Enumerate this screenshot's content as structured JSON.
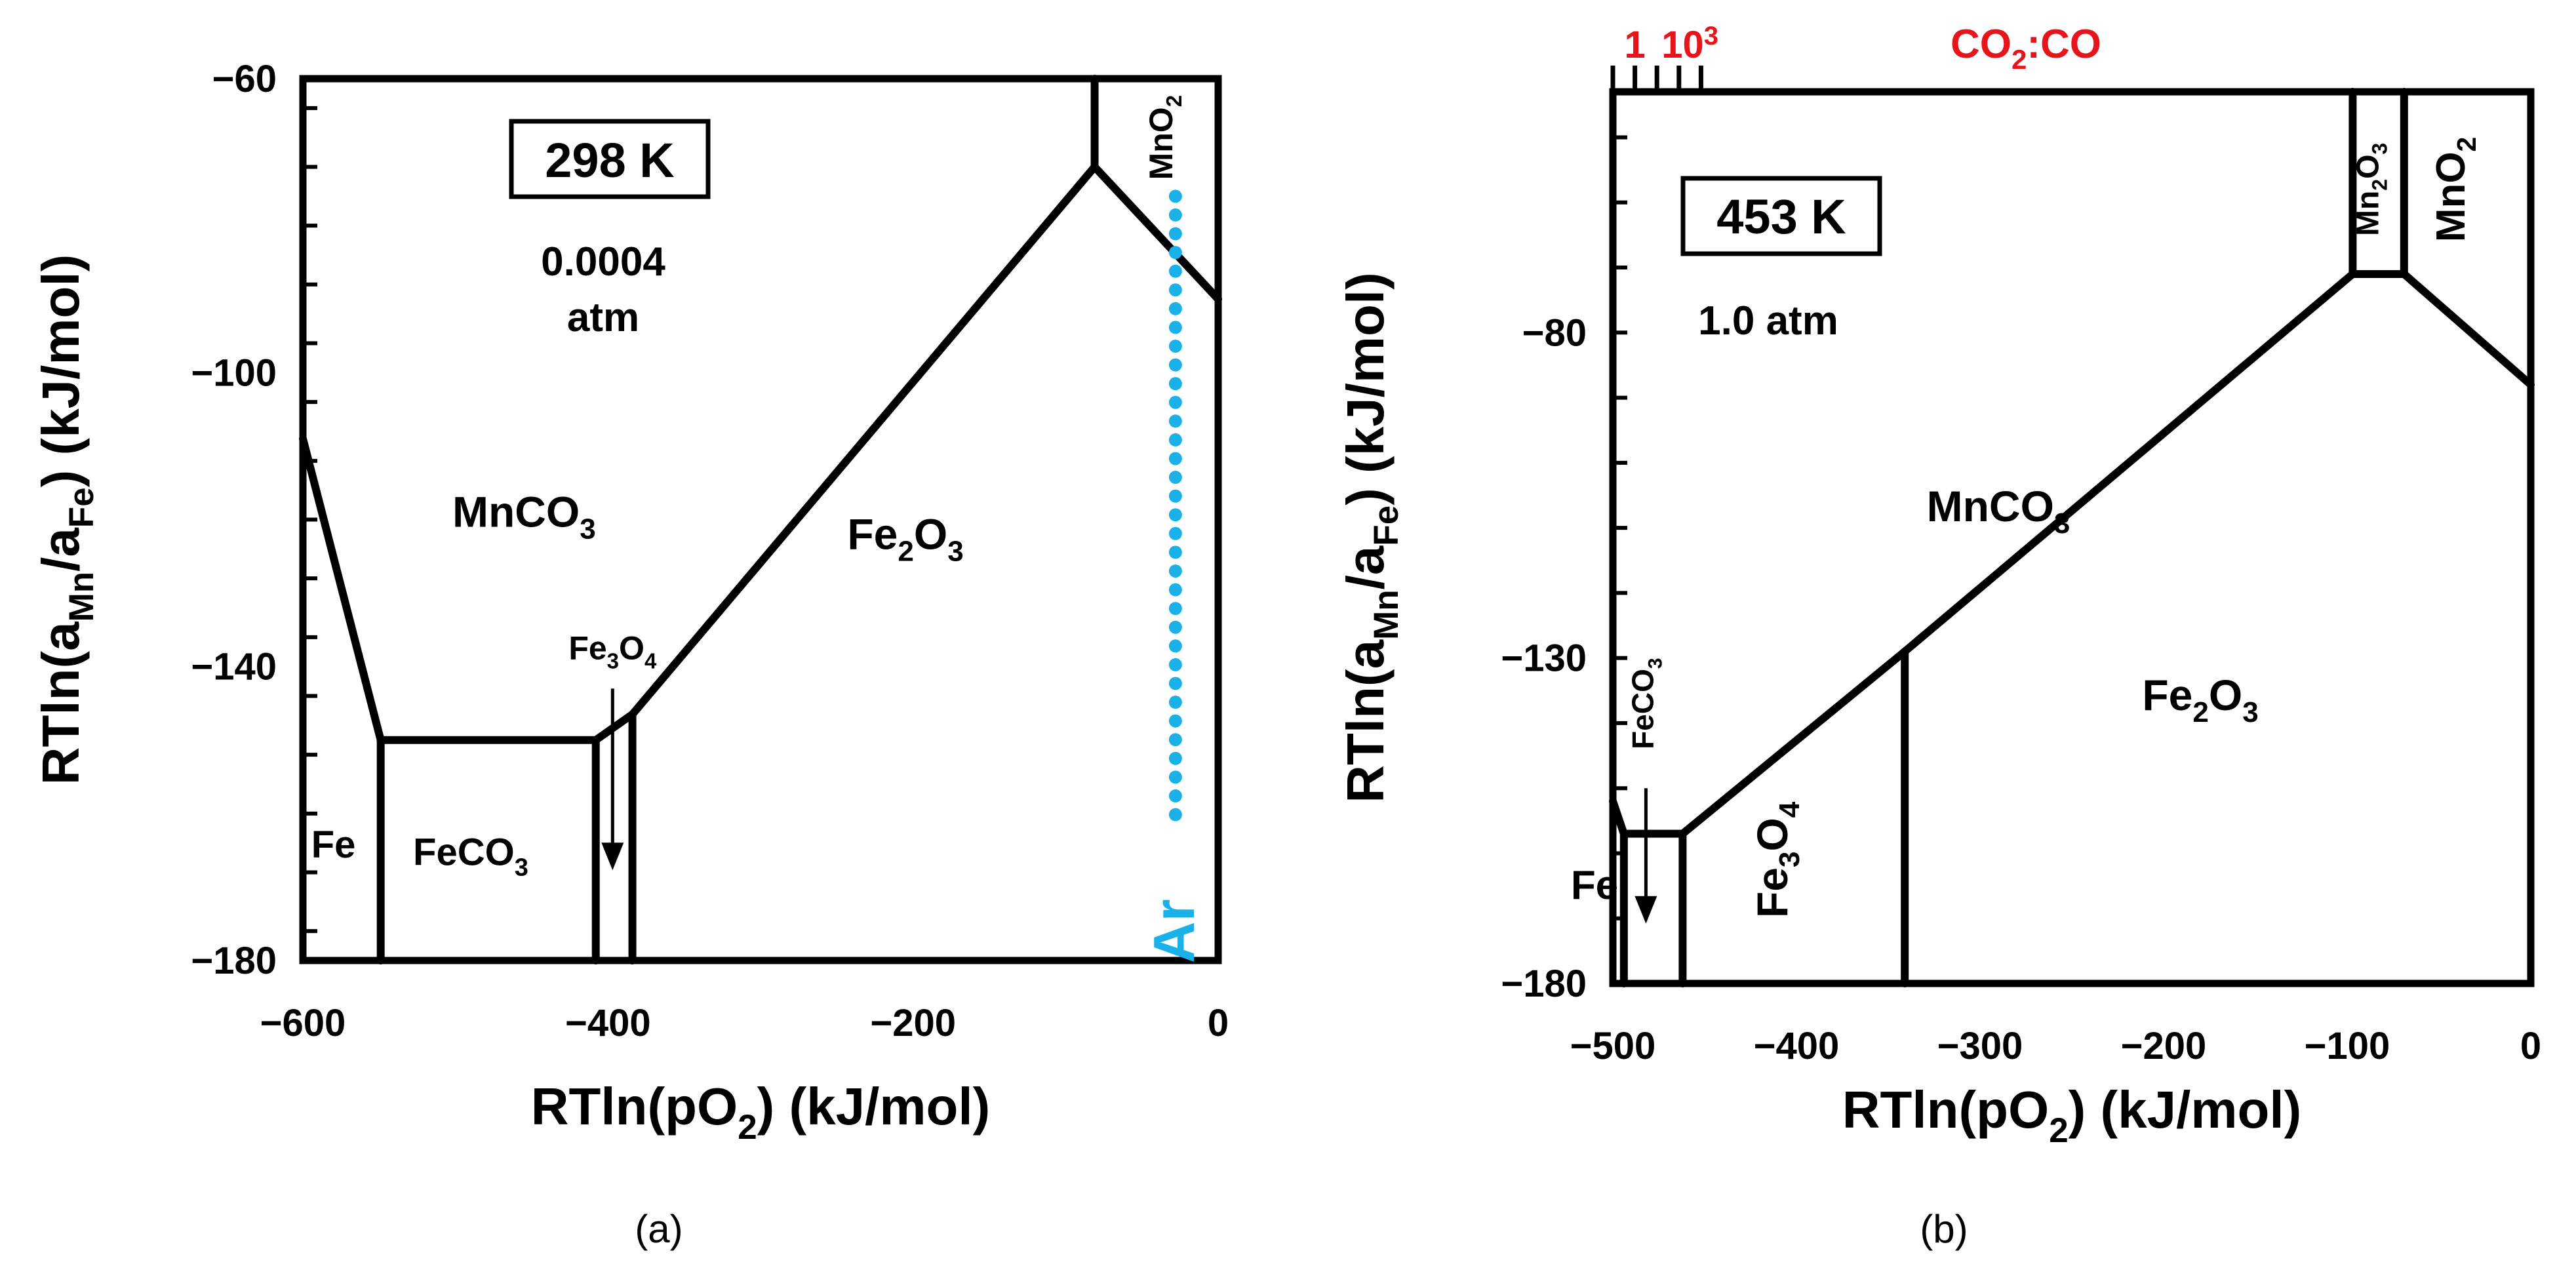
{
  "chart_data": [
    {
      "type": "phase-diagram",
      "panel": "(a)",
      "temperature": "298 K",
      "pressure_line1": "0.0004",
      "pressure_line2": "atm",
      "xlabel": "RTln(pO2) (kJ/mol)",
      "ylabel": "RTln(aMn/aFe) (kJ/mol)",
      "xlim": [
        -600,
        0
      ],
      "ylim": [
        -180,
        -60
      ],
      "xticks": [
        -600,
        -400,
        -200,
        0
      ],
      "xtick_labels": [
        "−600",
        "−400",
        "−200",
        "0"
      ],
      "yticks": [
        -60,
        -100,
        -140,
        -180
      ],
      "ytick_labels": [
        "−60",
        "−100",
        "−140",
        "−180"
      ],
      "boundaries": [
        [
          [
            -600,
            -109
          ],
          [
            -549,
            -150
          ]
        ],
        [
          [
            -549,
            -150
          ],
          [
            -549,
            -180
          ]
        ],
        [
          [
            -549,
            -150
          ],
          [
            -408,
            -150
          ]
        ],
        [
          [
            -408,
            -150
          ],
          [
            -408,
            -180
          ]
        ],
        [
          [
            -408,
            -150
          ],
          [
            -384,
            -146.5
          ]
        ],
        [
          [
            -384,
            -146.5
          ],
          [
            -384,
            -180
          ]
        ],
        [
          [
            -384,
            -146.5
          ],
          [
            -81,
            -72
          ]
        ],
        [
          [
            -81,
            -72
          ],
          [
            -81,
            -60
          ]
        ],
        [
          [
            -81,
            -72
          ],
          [
            0,
            -90
          ]
        ]
      ],
      "annotation_arrows": [
        [
          [
            -397,
            -143
          ],
          [
            -397,
            -167
          ]
        ]
      ],
      "dotted_line": {
        "x": -28,
        "y_range": [
          -162,
          -76
        ],
        "color": "#1ab0e8",
        "label": "Ar"
      },
      "regions": [
        {
          "label": "MnCO",
          "sub": "3",
          "x": -455,
          "y": -121
        },
        {
          "label": "Fe",
          "sub": "2",
          "rest": "O",
          "sub2": "3",
          "x": -205,
          "y": -124
        },
        {
          "label": "Fe",
          "x": -580,
          "y": -166
        },
        {
          "label": "FeCO",
          "sub": "3",
          "x": -490,
          "y": -167
        },
        {
          "label": "Fe",
          "sub": "3",
          "rest": "O",
          "sub2": "4",
          "x": -397,
          "y": -139
        }
      ],
      "vertical_label": {
        "text": "MnO",
        "sub": "2",
        "x": -30,
        "y": -68
      },
      "ar_label": "Ar",
      "caption": "(a)"
    },
    {
      "type": "phase-diagram",
      "panel": "(b)",
      "temperature": "453 K",
      "pressure": "1.0 atm",
      "xlabel": "RTln(pO2) (kJ/mol)",
      "ylabel": "RTln(aMn/aFe) (kJ/mol)",
      "xlim": [
        -500,
        0
      ],
      "ylim": [
        -180,
        -43
      ],
      "xticks": [
        -500,
        -400,
        -300,
        -200,
        -100,
        0
      ],
      "xtick_labels": [
        "−500",
        "−400",
        "−300",
        "−200",
        "−100",
        "0"
      ],
      "yticks": [
        -80,
        -130,
        -180
      ],
      "ytick_labels": [
        "−80",
        "−130",
        "−180"
      ],
      "boundaries": [
        [
          [
            -500,
            -152
          ],
          [
            -494,
            -157
          ]
        ],
        [
          [
            -494,
            -157
          ],
          [
            -494,
            -180
          ]
        ],
        [
          [
            -494,
            -157
          ],
          [
            -462,
            -157
          ]
        ],
        [
          [
            -462,
            -157
          ],
          [
            -462,
            -180
          ]
        ],
        [
          [
            -462,
            -157
          ],
          [
            -341,
            -129
          ]
        ],
        [
          [
            -341,
            -129
          ],
          [
            -341,
            -180
          ]
        ],
        [
          [
            -341,
            -129
          ],
          [
            -97,
            -71
          ]
        ],
        [
          [
            -97,
            -71
          ],
          [
            -97,
            -43
          ]
        ],
        [
          [
            -97,
            -71
          ],
          [
            -69,
            -71
          ]
        ],
        [
          [
            -69,
            -71
          ],
          [
            -69,
            -43
          ]
        ],
        [
          [
            -69,
            -71
          ],
          [
            0,
            -88
          ]
        ]
      ],
      "annotation_arrows": [
        [
          [
            -482,
            -150
          ],
          [
            -482,
            -170
          ]
        ]
      ],
      "regions": [
        {
          "label": "MnCO",
          "sub": "3",
          "x": -290,
          "y": -109
        },
        {
          "label": "Fe",
          "sub": "2",
          "rest": "O",
          "sub2": "3",
          "x": -180,
          "y": -138
        },
        {
          "label": "Fe",
          "x": -510,
          "y": -167
        }
      ],
      "vertical_labels": [
        {
          "text": "Mn",
          "sub": "2",
          "rest": "O",
          "sub2": "3",
          "x": -83,
          "y": -58
        },
        {
          "text": "MnO",
          "sub": "2",
          "x": -36,
          "y": -58
        },
        {
          "text": "FeCO",
          "sub": "3",
          "x": -478,
          "y": -137
        },
        {
          "text": "Fe",
          "sub": "3",
          "rest": "O",
          "sub2": "4",
          "x": -405,
          "y": -161
        }
      ],
      "secondary_axis": {
        "label": "CO2:CO",
        "tick_label_low": "1",
        "tick_label_high": "10",
        "tick_label_high_exp": "3",
        "color": "#e8141c",
        "ticks_x": [
          -500,
          -488,
          -476,
          -464,
          -452
        ]
      },
      "caption": "(b)"
    }
  ]
}
